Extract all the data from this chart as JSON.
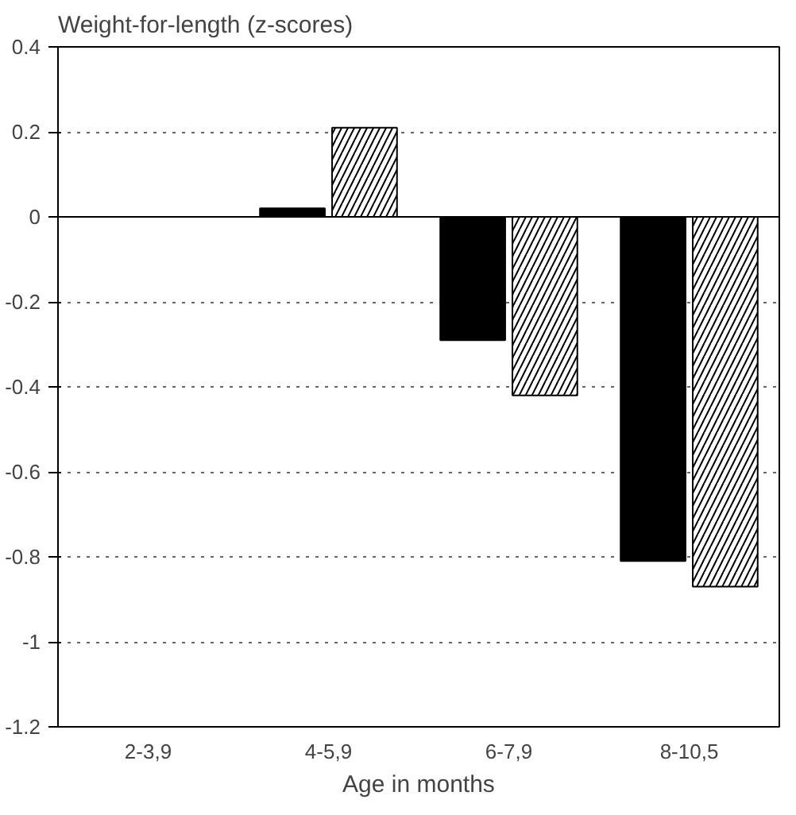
{
  "chart_data": {
    "type": "bar",
    "title": "Weight-for-length (z-scores)",
    "xlabel": "Age in months",
    "categories": [
      "2-3,9",
      "4-5,9",
      "6-7,9",
      "8-10,5"
    ],
    "series": [
      {
        "color": "#000000",
        "values": [
          null,
          0.02,
          -0.29,
          -0.81
        ]
      },
      {
        "color": "#ffffff",
        "values": [
          null,
          0.21,
          -0.42,
          -0.87
        ]
      }
    ],
    "ylim": [
      -1.2,
      0.4
    ],
    "yticks": [
      {
        "value": -1.2,
        "label": "-1.2"
      },
      -1,
      {
        "value": -0.8,
        "label": "-0.8"
      },
      {
        "value": -0.6,
        "label": "-0.6"
      },
      {
        "value": -0.4,
        "label": "-0.4"
      },
      {
        "value": -0.2,
        "label": "-0.2"
      },
      0,
      {
        "value": 0.2,
        "label": "0.2"
      },
      {
        "value": 0.4,
        "label": "0.4"
      }
    ],
    "grid": "y",
    "line_style": "dotted"
  }
}
